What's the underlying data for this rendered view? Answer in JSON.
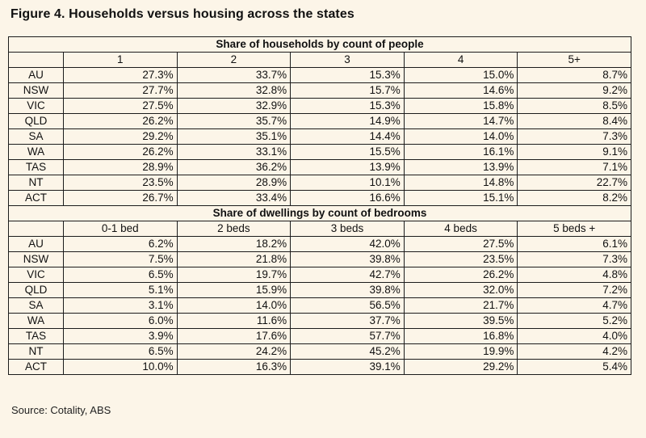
{
  "title": "Figure 4. Households versus housing across the states",
  "source": "Source: Cotality, ABS",
  "households": {
    "heading": "Share of households by count of people",
    "columns": [
      "1",
      "2",
      "3",
      "4",
      "5+"
    ],
    "rows": [
      {
        "state": "AU",
        "values": [
          "27.3%",
          "33.7%",
          "15.3%",
          "15.0%",
          "8.7%"
        ]
      },
      {
        "state": "NSW",
        "values": [
          "27.7%",
          "32.8%",
          "15.7%",
          "14.6%",
          "9.2%"
        ]
      },
      {
        "state": "VIC",
        "values": [
          "27.5%",
          "32.9%",
          "15.3%",
          "15.8%",
          "8.5%"
        ]
      },
      {
        "state": "QLD",
        "values": [
          "26.2%",
          "35.7%",
          "14.9%",
          "14.7%",
          "8.4%"
        ]
      },
      {
        "state": "SA",
        "values": [
          "29.2%",
          "35.1%",
          "14.4%",
          "14.0%",
          "7.3%"
        ]
      },
      {
        "state": "WA",
        "values": [
          "26.2%",
          "33.1%",
          "15.5%",
          "16.1%",
          "9.1%"
        ]
      },
      {
        "state": "TAS",
        "values": [
          "28.9%",
          "36.2%",
          "13.9%",
          "13.9%",
          "7.1%"
        ]
      },
      {
        "state": "NT",
        "values": [
          "23.5%",
          "28.9%",
          "10.1%",
          "14.8%",
          "22.7%"
        ]
      },
      {
        "state": "ACT",
        "values": [
          "26.7%",
          "33.4%",
          "16.6%",
          "15.1%",
          "8.2%"
        ]
      }
    ]
  },
  "dwellings": {
    "heading": "Share of dwellings by count of bedrooms",
    "columns": [
      "0-1 bed",
      "2 beds",
      "3 beds",
      "4 beds",
      "5 beds +"
    ],
    "rows": [
      {
        "state": "AU",
        "values": [
          "6.2%",
          "18.2%",
          "42.0%",
          "27.5%",
          "6.1%"
        ]
      },
      {
        "state": "NSW",
        "values": [
          "7.5%",
          "21.8%",
          "39.8%",
          "23.5%",
          "7.3%"
        ]
      },
      {
        "state": "VIC",
        "values": [
          "6.5%",
          "19.7%",
          "42.7%",
          "26.2%",
          "4.8%"
        ]
      },
      {
        "state": "QLD",
        "values": [
          "5.1%",
          "15.9%",
          "39.8%",
          "32.0%",
          "7.2%"
        ]
      },
      {
        "state": "SA",
        "values": [
          "3.1%",
          "14.0%",
          "56.5%",
          "21.7%",
          "4.7%"
        ]
      },
      {
        "state": "WA",
        "values": [
          "6.0%",
          "11.6%",
          "37.7%",
          "39.5%",
          "5.2%"
        ]
      },
      {
        "state": "TAS",
        "values": [
          "3.9%",
          "17.6%",
          "57.7%",
          "16.8%",
          "4.0%"
        ]
      },
      {
        "state": "NT",
        "values": [
          "6.5%",
          "24.2%",
          "45.2%",
          "19.9%",
          "4.2%"
        ]
      },
      {
        "state": "ACT",
        "values": [
          "10.0%",
          "16.3%",
          "39.1%",
          "29.2%",
          "5.4%"
        ]
      }
    ]
  }
}
